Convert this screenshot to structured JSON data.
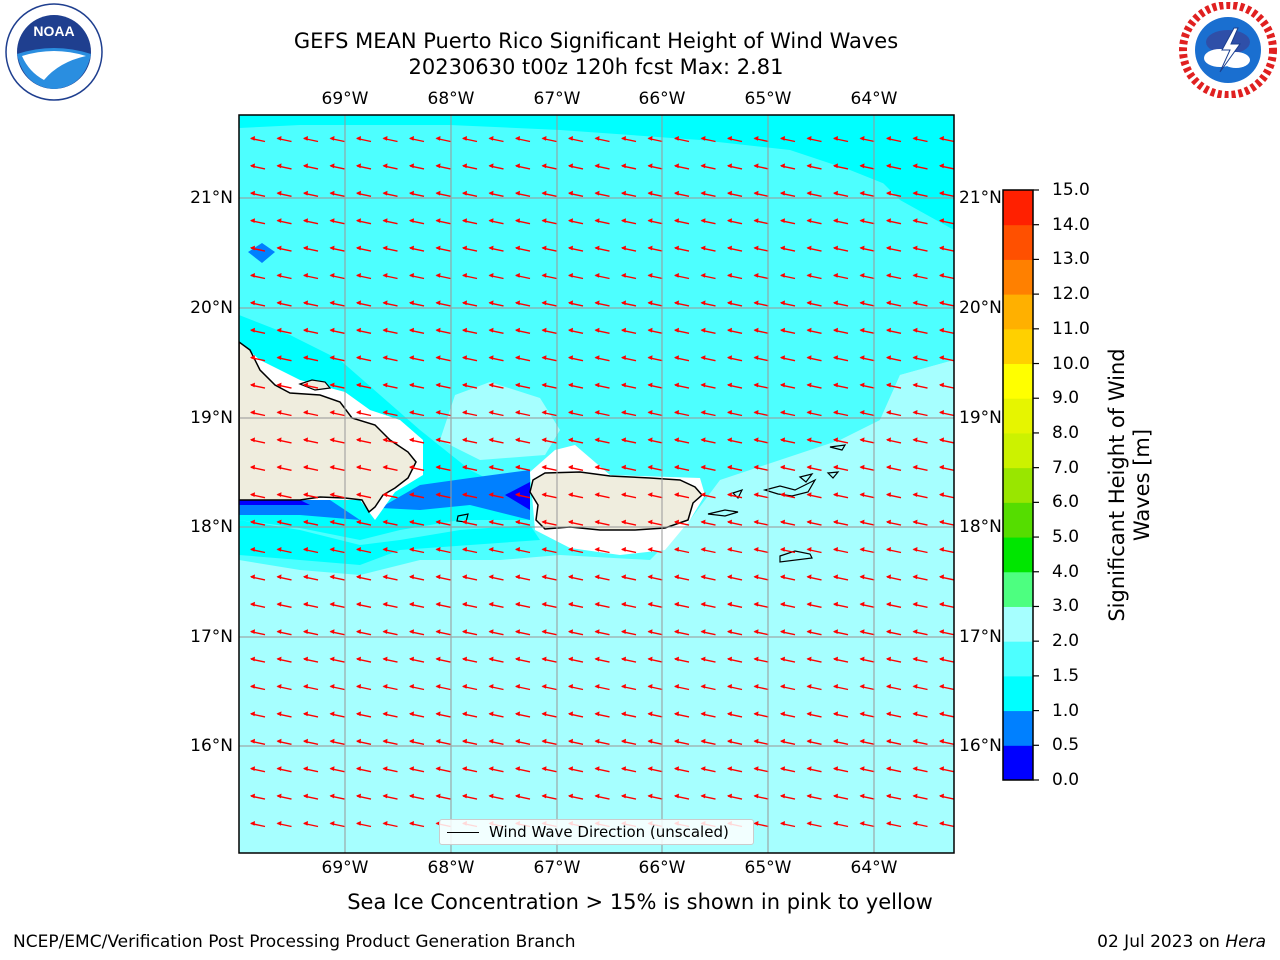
{
  "title": {
    "line1": "GEFS MEAN Puerto Rico Significant Height of Wind Waves",
    "line2": "20230630 t00z 120h fcst   Max: 2.81"
  },
  "map": {
    "lon_labels": [
      "69°W",
      "68°W",
      "67°W",
      "66°W",
      "65°W",
      "64°W"
    ],
    "lat_labels": [
      "21°N",
      "20°N",
      "19°N",
      "18°N",
      "17°N",
      "16°N"
    ],
    "extent": {
      "lon_min": -70.0,
      "lon_max": -63.25,
      "lat_min": 15.25,
      "lat_max": 21.75
    },
    "land_color": "#efedde",
    "ocean_colors": {
      "0.0-0.5": "#0000ff",
      "0.5-1.0": "#0080ff",
      "1.0-1.5": "#00ffff",
      "1.5-2.0": "#4dffff",
      "2.0-3.0": "#a6ffff"
    },
    "arrow_color": "#ff0000",
    "legend_label": "Wind Wave Direction (unscaled)"
  },
  "colorbar": {
    "title": "Significant Height of Wind Waves [m]",
    "ticks": [
      "0.0",
      "0.5",
      "1.0",
      "1.5",
      "2.0",
      "3.0",
      "4.0",
      "5.0",
      "6.0",
      "7.0",
      "8.0",
      "9.0",
      "10.0",
      "11.0",
      "12.0",
      "13.0",
      "14.0",
      "15.0"
    ],
    "colors": [
      "#0000ff",
      "#0080ff",
      "#00ffff",
      "#4dffff",
      "#a6ffff",
      "#4dff80",
      "#00e600",
      "#55dd00",
      "#99e600",
      "#ccf200",
      "#e6f500",
      "#ffff00",
      "#ffd000",
      "#ffb000",
      "#ff8000",
      "#ff5000",
      "#ff2000",
      "#ff0000"
    ]
  },
  "note": "Sea Ice Concentration > 15% is shown in pink to yellow",
  "footer": {
    "left": "NCEP/EMC/Verification Post Processing Product Generation Branch",
    "date": "02 Jul 2023 on",
    "machine": "Hera"
  },
  "logos": {
    "left": "noaa-logo",
    "right": "nws-logo",
    "left_text": "NOAA"
  }
}
